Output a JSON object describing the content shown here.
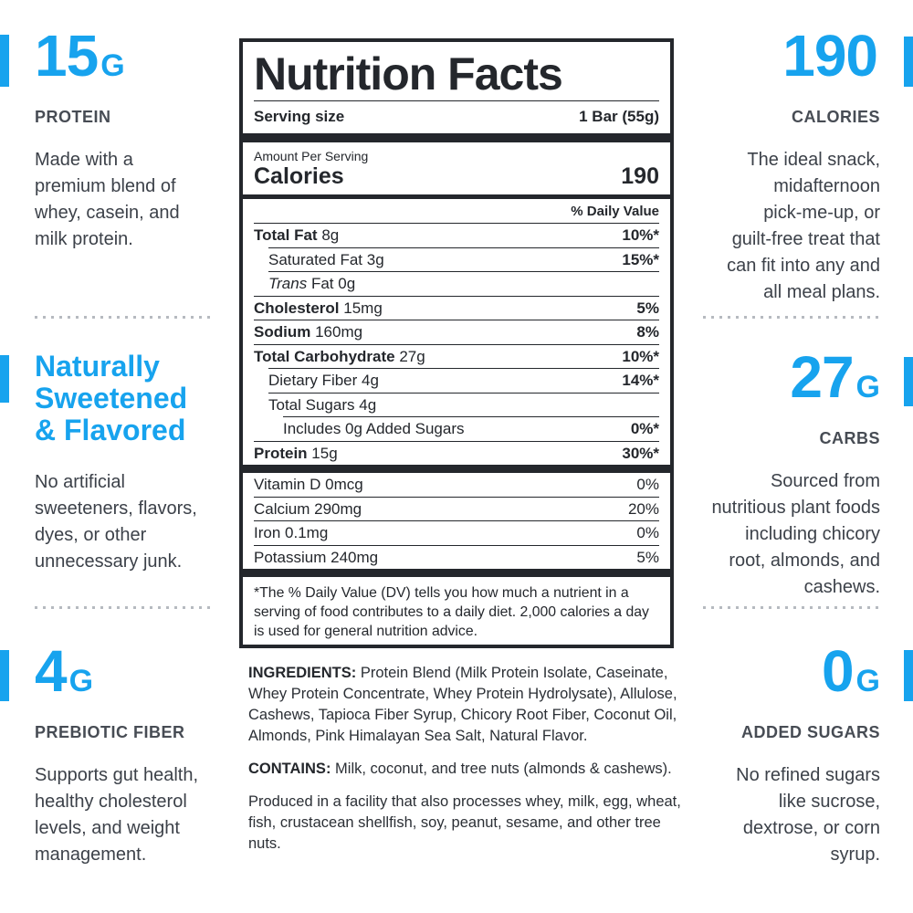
{
  "accent_color": "#17a3ee",
  "callouts": {
    "protein": {
      "stat": "15",
      "unit": "G",
      "label": "PROTEIN",
      "description": "Made with a\npremium blend of\nwhey, casein, and\nmilk protein."
    },
    "sweetened": {
      "heading": "Naturally\nSweetened\n& Flavored",
      "description": "No artificial\nsweeteners, flavors,\ndyes, or other\nunnecessary junk."
    },
    "fiber": {
      "stat": "4",
      "unit": "G",
      "label": "PREBIOTIC FIBER",
      "description": "Supports gut health,\nhealthy cholesterol\nlevels, and weight\nmanagement."
    },
    "calories": {
      "stat": "190",
      "unit": "",
      "label": "CALORIES",
      "description": "The ideal snack,\nmidafternoon\npick-me-up, or\nguilt-free treat that\ncan fit into any and\nall meal plans."
    },
    "carbs": {
      "stat": "27",
      "unit": "G",
      "label": "CARBS",
      "description": "Sourced from\nnutritious plant foods\nincluding chicory\nroot, almonds, and\ncashews."
    },
    "added_sugars": {
      "stat": "0",
      "unit": "G",
      "label": "ADDED SUGARS",
      "description": "No refined sugars\nlike sucrose,\ndextrose, or corn\nsyrup."
    }
  },
  "nutrition_label": {
    "title": "Nutrition Facts",
    "serving_size_label": "Serving size",
    "serving_size_value": "1 Bar (55g)",
    "amount_per_serving": "Amount Per Serving",
    "calories_label": "Calories",
    "calories_value": "190",
    "daily_value_header": "% Daily Value",
    "rows": [
      {
        "name": "Total Fat",
        "amount": "8g",
        "dv": "10%*",
        "bold": true,
        "indent": 0
      },
      {
        "name": "Saturated Fat",
        "amount": "3g",
        "dv": "15%*",
        "bold": false,
        "indent": 1
      },
      {
        "name_italic": "Trans",
        "name": "Fat",
        "amount": "0g",
        "dv": "",
        "bold": false,
        "indent": 1
      },
      {
        "name": "Cholesterol",
        "amount": "15mg",
        "dv": "5%",
        "bold": true,
        "indent": 0
      },
      {
        "name": "Sodium",
        "amount": "160mg",
        "dv": "8%",
        "bold": true,
        "indent": 0
      },
      {
        "name": "Total Carbohydrate",
        "amount": "27g",
        "dv": "10%*",
        "bold": true,
        "indent": 0
      },
      {
        "name": "Dietary Fiber",
        "amount": "4g",
        "dv": "14%*",
        "bold": false,
        "indent": 1
      },
      {
        "name": "Total Sugars",
        "amount": "4g",
        "dv": "",
        "bold": false,
        "indent": 1
      },
      {
        "name": "Includes 0g Added Sugars",
        "amount": "",
        "dv": "0%*",
        "bold": false,
        "indent": 2
      },
      {
        "name": "Protein",
        "amount": "15g",
        "dv": "30%*",
        "bold": true,
        "indent": 0
      }
    ],
    "vitamin_rows": [
      {
        "name": "Vitamin D",
        "amount": "0mcg",
        "dv": "0%"
      },
      {
        "name": "Calcium",
        "amount": "290mg",
        "dv": "20%"
      },
      {
        "name": "Iron",
        "amount": "0.1mg",
        "dv": "0%"
      },
      {
        "name": "Potassium",
        "amount": "240mg",
        "dv": "5%"
      }
    ],
    "footnote": "*The % Daily Value (DV) tells you how much a nutrient in a serving of food contributes to a daily diet. 2,000 calories a day is used for general nutrition advice."
  },
  "ingredients": {
    "label": "INGREDIENTS:",
    "text": "Protein Blend (Milk Protein Isolate, Caseinate, Whey Protein Concentrate, Whey Protein Hydrolysate), Allulose, Cashews, Tapioca Fiber Syrup, Chicory Root Fiber, Coconut Oil, Almonds, Pink Himalayan Sea Salt, Natural Flavor.",
    "contains_label": "CONTAINS:",
    "contains_text": "Milk, coconut, and tree nuts (almonds & cashews).",
    "facility_text": "Produced in a facility that also processes whey, milk, egg, wheat, fish, crustacean shellfish, soy, peanut, sesame, and other tree nuts."
  }
}
